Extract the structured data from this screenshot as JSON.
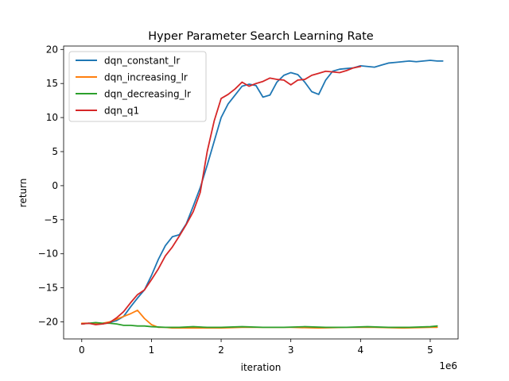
{
  "chart_data": {
    "type": "line",
    "title": "Hyper Parameter Search Learning Rate",
    "xlabel": "iteration",
    "ylabel": "return",
    "x_multiplier_label": "1e6",
    "xlim": [
      -0.26,
      5.4
    ],
    "ylim": [
      -22.5,
      20.5
    ],
    "x_ticks": [
      0,
      1,
      2,
      3,
      4,
      5
    ],
    "y_ticks": [
      -20,
      -15,
      -10,
      -5,
      0,
      5,
      10,
      15,
      20
    ],
    "x_tick_labels": [
      "0",
      "1",
      "2",
      "3",
      "4",
      "5"
    ],
    "y_tick_labels": [
      "−20",
      "−15",
      "−10",
      "−5",
      "0",
      "5",
      "10",
      "15",
      "20"
    ],
    "grid": false,
    "legend_position": "top-left",
    "series": [
      {
        "name": "dqn_constant_lr",
        "color": "#1f77b4",
        "x": [
          0,
          0.1,
          0.2,
          0.3,
          0.4,
          0.5,
          0.6,
          0.7,
          0.8,
          0.9,
          1.0,
          1.1,
          1.2,
          1.3,
          1.4,
          1.5,
          1.6,
          1.7,
          1.8,
          1.9,
          2.0,
          2.1,
          2.2,
          2.3,
          2.4,
          2.5,
          2.6,
          2.7,
          2.8,
          2.9,
          3.0,
          3.1,
          3.2,
          3.3,
          3.4,
          3.5,
          3.6,
          3.7,
          3.8,
          3.9,
          4.0,
          4.1,
          4.2,
          4.3,
          4.4,
          4.5,
          4.6,
          4.7,
          4.8,
          4.9,
          5.0,
          5.1,
          5.18
        ],
        "values": [
          -20.3,
          -20.2,
          -20.3,
          -20.3,
          -20.1,
          -19.8,
          -19.2,
          -17.8,
          -16.5,
          -15.3,
          -13.2,
          -10.8,
          -8.8,
          -7.5,
          -7.2,
          -5.6,
          -3.0,
          -0.3,
          3.0,
          6.5,
          10.0,
          12.0,
          13.3,
          14.6,
          14.9,
          14.7,
          13.0,
          13.3,
          15.2,
          16.2,
          16.6,
          16.3,
          15.2,
          13.8,
          13.4,
          15.5,
          16.8,
          17.1,
          17.2,
          17.3,
          17.6,
          17.5,
          17.4,
          17.7,
          18.0,
          18.1,
          18.2,
          18.3,
          18.2,
          18.3,
          18.4,
          18.3,
          18.3
        ]
      },
      {
        "name": "dqn_increasing_lr",
        "color": "#ff7f0e",
        "x": [
          0,
          0.1,
          0.2,
          0.3,
          0.4,
          0.5,
          0.6,
          0.7,
          0.8,
          0.9,
          1.0,
          1.1,
          1.2,
          1.3,
          1.5,
          1.7,
          2.0,
          2.3,
          2.6,
          3.0,
          3.4,
          3.8,
          4.2,
          4.6,
          5.0,
          5.1
        ],
        "values": [
          -20.2,
          -20.2,
          -20.3,
          -20.2,
          -20.0,
          -19.6,
          -19.2,
          -18.8,
          -18.3,
          -19.5,
          -20.4,
          -20.8,
          -20.8,
          -20.9,
          -20.9,
          -20.9,
          -20.9,
          -20.8,
          -20.8,
          -20.8,
          -20.9,
          -20.8,
          -20.8,
          -20.9,
          -20.8,
          -20.8
        ]
      },
      {
        "name": "dqn_decreasing_lr",
        "color": "#2ca02c",
        "x": [
          0,
          0.1,
          0.2,
          0.3,
          0.4,
          0.5,
          0.6,
          0.7,
          0.8,
          0.9,
          1.0,
          1.2,
          1.4,
          1.6,
          1.8,
          2.0,
          2.3,
          2.6,
          2.9,
          3.2,
          3.5,
          3.8,
          4.1,
          4.4,
          4.7,
          5.0,
          5.1
        ],
        "values": [
          -20.3,
          -20.2,
          -20.1,
          -20.2,
          -20.2,
          -20.3,
          -20.5,
          -20.5,
          -20.6,
          -20.6,
          -20.7,
          -20.8,
          -20.8,
          -20.7,
          -20.8,
          -20.8,
          -20.7,
          -20.8,
          -20.8,
          -20.7,
          -20.8,
          -20.8,
          -20.7,
          -20.8,
          -20.8,
          -20.7,
          -20.6
        ]
      },
      {
        "name": "dqn_q1",
        "color": "#d62728",
        "x": [
          0,
          0.1,
          0.2,
          0.3,
          0.4,
          0.5,
          0.6,
          0.7,
          0.8,
          0.9,
          1.0,
          1.1,
          1.2,
          1.3,
          1.4,
          1.5,
          1.6,
          1.7,
          1.8,
          1.9,
          2.0,
          2.1,
          2.2,
          2.3,
          2.4,
          2.5,
          2.6,
          2.7,
          2.8,
          2.9,
          3.0,
          3.1,
          3.2,
          3.3,
          3.4,
          3.5,
          3.6,
          3.7,
          3.8,
          3.9,
          4.0
        ],
        "values": [
          -20.3,
          -20.2,
          -20.4,
          -20.3,
          -20.1,
          -19.4,
          -18.5,
          -17.2,
          -16.0,
          -15.3,
          -13.8,
          -12.2,
          -10.3,
          -9.0,
          -7.4,
          -5.7,
          -3.8,
          -1.0,
          5.0,
          9.5,
          12.8,
          13.4,
          14.2,
          15.2,
          14.6,
          15.0,
          15.3,
          15.8,
          15.6,
          15.5,
          14.8,
          15.5,
          15.6,
          16.2,
          16.5,
          16.8,
          16.7,
          16.6,
          16.9,
          17.3,
          17.5
        ]
      }
    ]
  }
}
